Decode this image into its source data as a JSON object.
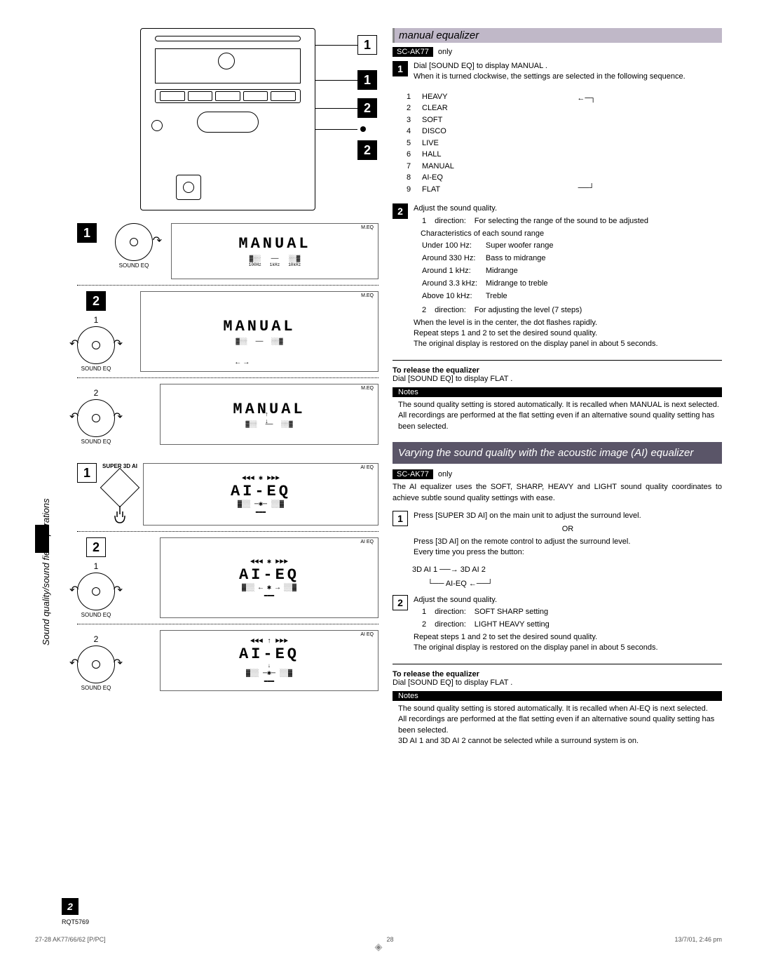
{
  "sideLabel": "Sound quality/sound field operations",
  "manual": {
    "title": "manual equalizer",
    "model": "SC-AK77",
    "only": "only",
    "step1": {
      "text1": "Dial [SOUND EQ] to display  MANUAL .",
      "text2": "When it is turned clockwise, the settings are selected in the following sequence."
    },
    "modes": [
      {
        "n": "1",
        "label": "HEAVY"
      },
      {
        "n": "2",
        "label": "CLEAR"
      },
      {
        "n": "3",
        "label": "SOFT"
      },
      {
        "n": "4",
        "label": "DISCO"
      },
      {
        "n": "5",
        "label": "LIVE"
      },
      {
        "n": "6",
        "label": "HALL"
      },
      {
        "n": "7",
        "label": "MANUAL"
      },
      {
        "n": "8",
        "label": "AI-EQ"
      },
      {
        "n": "9",
        "label": "FLAT"
      }
    ],
    "step2": {
      "title": "Adjust the sound quality.",
      "row1a": "1",
      "row1b": "direction:",
      "row1c": "For selecting the range of the sound to be adjusted",
      "charHeader": "Characteristics of each sound range",
      "ranges": [
        {
          "f": "Under 100 Hz:",
          "d": "Super woofer range"
        },
        {
          "f": "Around 330 Hz:",
          "d": "Bass to midrange"
        },
        {
          "f": "Around 1 kHz:",
          "d": "Midrange"
        },
        {
          "f": "Around 3.3 kHz:",
          "d": "Midrange to treble"
        },
        {
          "f": "Above 10 kHz:",
          "d": "Treble"
        }
      ],
      "row2a": "2",
      "row2b": "direction:",
      "row2c": "For adjusting the level (7 steps)",
      "note1": "When the level is in the center, the dot flashes rapidly.",
      "note2": "Repeat steps 1  and 2   to set the desired sound quality.",
      "note3": "The original display is restored on the display panel in about 5 seconds."
    },
    "release": {
      "h": "To release the equalizer",
      "t": "Dial [SOUND EQ] to display  FLAT ."
    },
    "notesLabel": "Notes",
    "notes": [
      "The sound quality setting is stored automatically. It is recalled when  MANUAL  is next selected.",
      "All recordings are performed at the flat setting even if an alternative sound quality setting has been selected."
    ]
  },
  "ai": {
    "title": "Varying the sound quality with the acoustic image (AI) equalizer",
    "model": "SC-AK77",
    "only": "only",
    "intro": "The AI equalizer uses the SOFT, SHARP, HEAVY and LIGHT sound quality coordinates to achieve subtle sound quality settings with ease.",
    "step1": {
      "a": "Press [SUPER 3D AI] on the main unit to adjust the surround level.",
      "or": "OR",
      "b": "Press [3D AI] on the remote control to adjust the surround level.",
      "c": "Every time you press the button:",
      "flow1": "3D AI 1  ──→  3D AI 2",
      "flow2": "└── AI-EQ ←──┘"
    },
    "step2": {
      "title": "Adjust the sound quality.",
      "r1a": "1",
      "r1b": "direction:",
      "r1c": "SOFT  SHARP setting",
      "r2a": "2",
      "r2b": "direction:",
      "r2c": "LIGHT  HEAVY setting",
      "note1": "Repeat steps 1  and 2   to set the desired sound quality.",
      "note2": "The original display is restored on the display panel in about 5 seconds."
    },
    "release": {
      "h": "To release the equalizer",
      "t": "Dial [SOUND EQ] to display  FLAT ."
    },
    "notesLabel": "Notes",
    "notes": [
      "The sound quality setting is stored automatically. It is recalled when  AI-EQ  is next selected.",
      "All recordings are performed at the flat setting even if an alternative sound quality setting has been selected.",
      " 3D AI 1  and  3D AI 2  cannot be selected while a surround system is on."
    ]
  },
  "left": {
    "soundEq": "SOUND EQ",
    "super3d": "SUPER 3D AI",
    "lcdManual": "MANUAL",
    "lcdAIEQ": "AI-EQ",
    "meq": "M.EQ",
    "aieq": "AI EQ",
    "freq1": "100Hz",
    "freq2": "1kHz",
    "freq3": "10kHz"
  },
  "footer": {
    "pageNum": "2",
    "rqt": "RQT5769",
    "left": "27-28 AK77/66/62 [P/PC]",
    "mid": "28",
    "right": "13/7/01, 2:46 pm"
  }
}
